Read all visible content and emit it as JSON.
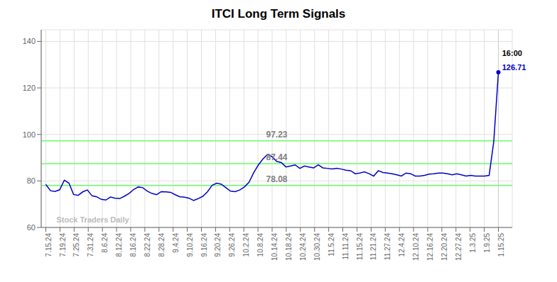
{
  "chart_data": {
    "type": "line",
    "title": "ITCI Long Term Signals",
    "x": [
      0,
      1,
      2,
      3,
      4,
      5,
      6,
      7,
      8,
      9,
      10,
      11,
      12,
      13,
      14,
      15,
      16,
      17,
      18,
      19,
      20,
      21,
      22,
      23,
      24,
      25,
      26,
      27,
      28,
      29,
      30,
      31,
      32,
      33,
      34,
      35,
      36,
      37,
      38,
      39,
      40,
      41,
      42,
      43,
      44,
      45,
      46,
      47,
      48,
      49,
      50,
      51,
      52,
      53,
      54,
      55,
      56,
      57,
      58,
      59,
      60,
      61,
      62,
      63,
      64,
      65,
      66,
      67,
      68,
      69,
      70,
      71,
      72,
      73,
      74,
      75,
      76,
      77,
      78,
      79,
      80,
      81,
      82,
      83,
      84,
      85,
      86,
      87,
      88,
      89,
      90,
      91,
      92,
      93,
      94,
      95,
      96,
      97,
      98
    ],
    "values": [
      78.5,
      75.8,
      75.5,
      76.2,
      80.3,
      79.1,
      74.2,
      73.8,
      75.3,
      76.1,
      73.6,
      73.2,
      72.1,
      71.8,
      73.1,
      72.6,
      72.4,
      73.4,
      74.6,
      76.3,
      77.4,
      77.1,
      75.6,
      74.6,
      74.1,
      75.4,
      75.3,
      75.1,
      74.1,
      73.2,
      73.0,
      72.6,
      71.6,
      72.4,
      73.4,
      75.3,
      78.1,
      79.0,
      78.6,
      77.1,
      75.6,
      75.4,
      76.1,
      77.4,
      79.4,
      83.5,
      86.8,
      89.4,
      91.4,
      90.4,
      88.4,
      87.9,
      86.0,
      86.4,
      86.9,
      85.4,
      86.4,
      86.0,
      85.6,
      86.9,
      85.6,
      85.4,
      85.1,
      85.4,
      85.1,
      84.6,
      84.4,
      83.1,
      83.4,
      83.9,
      83.1,
      82.1,
      84.4,
      83.6,
      83.4,
      83.1,
      82.6,
      82.1,
      83.4,
      83.1,
      82.1,
      82.1,
      82.4,
      82.9,
      83.1,
      83.4,
      83.4,
      83.1,
      82.6,
      83.1,
      82.6,
      82.1,
      82.4,
      82.1,
      82.1,
      82.1,
      82.4,
      97.0,
      126.71
    ],
    "color": "#0000cc",
    "xlim": [
      -1,
      101
    ],
    "xticks": [
      {
        "value": 0,
        "label": "7.15.24"
      },
      {
        "value": 3.0625,
        "label": "7.19.24"
      },
      {
        "value": 6.125,
        "label": "7.25.24"
      },
      {
        "value": 9.1875,
        "label": "7.31.24"
      },
      {
        "value": 12.25,
        "label": "8.6.24"
      },
      {
        "value": 15.3125,
        "label": "8.12.24"
      },
      {
        "value": 18.375,
        "label": "8.16.24"
      },
      {
        "value": 21.4375,
        "label": "8.22.24"
      },
      {
        "value": 24.5,
        "label": "8.28.24"
      },
      {
        "value": 27.5625,
        "label": "9.4.24"
      },
      {
        "value": 30.625,
        "label": "9.10.24"
      },
      {
        "value": 33.6875,
        "label": "9.16.24"
      },
      {
        "value": 36.75,
        "label": "9.20.24"
      },
      {
        "value": 39.8125,
        "label": "9.26.24"
      },
      {
        "value": 42.875,
        "label": "10.2.24"
      },
      {
        "value": 45.9375,
        "label": "10.8.24"
      },
      {
        "value": 49,
        "label": "10.14.24"
      },
      {
        "value": 52.0625,
        "label": "10.18.24"
      },
      {
        "value": 55.125,
        "label": "10.24.24"
      },
      {
        "value": 58.1875,
        "label": "10.30.24"
      },
      {
        "value": 61.25,
        "label": "11.5.24"
      },
      {
        "value": 64.3125,
        "label": "11.11.24"
      },
      {
        "value": 67.375,
        "label": "11.15.24"
      },
      {
        "value": 70.4375,
        "label": "11.21.24"
      },
      {
        "value": 73.5,
        "label": "11.27.24"
      },
      {
        "value": 76.5625,
        "label": "12.4.24"
      },
      {
        "value": 79.625,
        "label": "12.10.24"
      },
      {
        "value": 82.6875,
        "label": "12.16.24"
      },
      {
        "value": 85.75,
        "label": "12.20.24"
      },
      {
        "value": 88.8125,
        "label": "12.27.24"
      },
      {
        "value": 91.875,
        "label": "1.3.25"
      },
      {
        "value": 94.9375,
        "label": "1.9.25"
      },
      {
        "value": 98,
        "label": "1.15.25"
      }
    ],
    "ylim": [
      60,
      145
    ],
    "yticks": [
      60,
      80,
      100,
      120,
      140
    ],
    "grid": true,
    "hlines": [
      {
        "value": 78.08,
        "label": "78.08",
        "color": "#66ff66"
      },
      {
        "value": 87.44,
        "label": "87.44",
        "color": "#66ff66"
      },
      {
        "value": 97.23,
        "label": "97.23",
        "color": "#66ff66"
      }
    ],
    "vlines": [
      98
    ],
    "annotations": [
      {
        "text": "16:00",
        "x": 98.5,
        "y": 133.71,
        "color": "#000000"
      },
      {
        "text": "126.71",
        "x": 98.5,
        "y": 127.71,
        "color": "#0000cc"
      },
      {
        "text": "Stock Traders Daily",
        "x": 2,
        "y": 62,
        "color": "#bbbbbb"
      }
    ]
  }
}
